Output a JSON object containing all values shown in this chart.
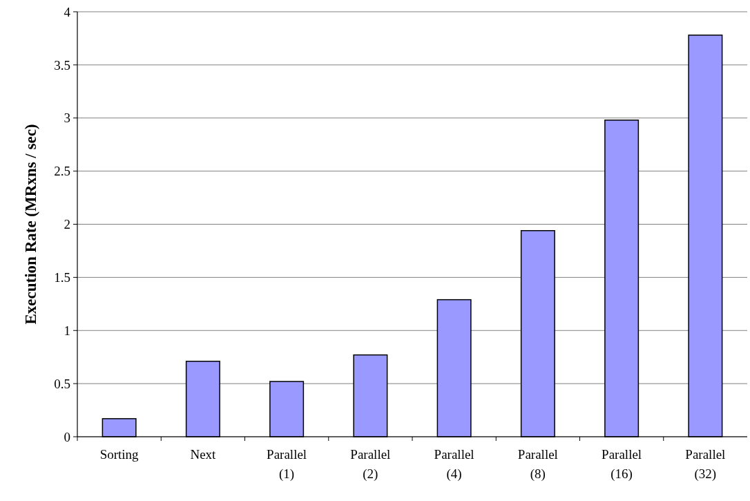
{
  "chart_data": {
    "type": "bar",
    "ylabel": "Execution Rate (MRxns / sec)",
    "categories": [
      "Sorting",
      "Next",
      "Parallel (1)",
      "Parallel (2)",
      "Parallel (4)",
      "Parallel (8)",
      "Parallel (16)",
      "Parallel (32)"
    ],
    "values": [
      0.17,
      0.71,
      0.52,
      0.77,
      1.29,
      1.94,
      2.98,
      3.78
    ],
    "color": "#9999ff",
    "ylim": [
      0,
      4
    ],
    "yticks": [
      0,
      0.5,
      1,
      1.5,
      2,
      2.5,
      3,
      3.5,
      4
    ],
    "grid": "y"
  }
}
